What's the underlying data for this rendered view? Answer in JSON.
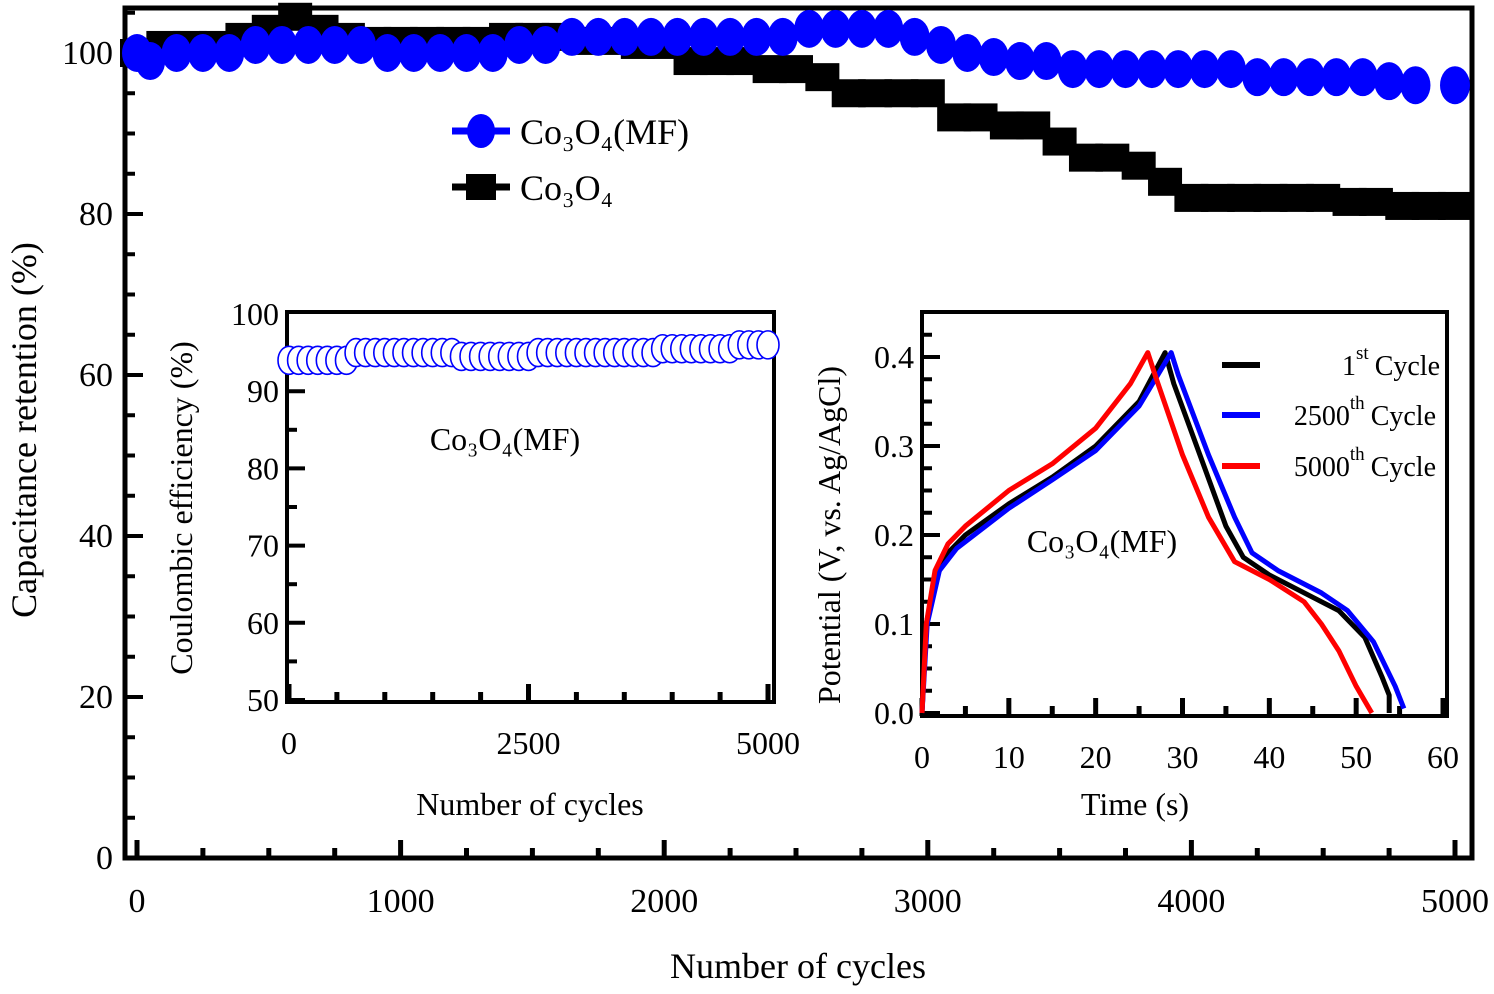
{
  "chart_data": [
    {
      "type": "scatter",
      "xlabel": "Number of cycles",
      "ylabel": "Capacitance retention (%)",
      "xlim": [
        0,
        5000
      ],
      "ylim": [
        0,
        105.6
      ],
      "xticks": [
        "0",
        "1000",
        "2000",
        "3000",
        "4000",
        "5000"
      ],
      "yticks": [
        "0",
        "20",
        "40",
        "60",
        "80",
        "100"
      ],
      "legend_position": "upper-left-center",
      "grid": false,
      "series": [
        {
          "name": "Co₃O₄(MF)",
          "marker": "circle",
          "color": "#0000ff",
          "x": [
            0,
            50,
            150,
            250,
            350,
            450,
            550,
            650,
            750,
            850,
            950,
            1050,
            1150,
            1250,
            1350,
            1450,
            1550,
            1650,
            1750,
            1850,
            1950,
            2050,
            2150,
            2250,
            2350,
            2450,
            2550,
            2650,
            2750,
            2850,
            2950,
            3050,
            3150,
            3250,
            3350,
            3450,
            3550,
            3650,
            3750,
            3850,
            3950,
            4050,
            4150,
            4250,
            4350,
            4450,
            4550,
            4650,
            4750,
            4850,
            5000
          ],
          "y": [
            100,
            99,
            100,
            100,
            100,
            101,
            101,
            101,
            101,
            101,
            100,
            100,
            100,
            100,
            100,
            101,
            101,
            102,
            102,
            102,
            102,
            102,
            102,
            102,
            102,
            102,
            103,
            103,
            103,
            103,
            102,
            101,
            100,
            99.5,
            99,
            99,
            98,
            98,
            98,
            98,
            98,
            98,
            98,
            97,
            97,
            97,
            97,
            97,
            96.5,
            96,
            96
          ]
        },
        {
          "name": "Co₃O₄",
          "marker": "square",
          "color": "#000000",
          "x": [
            0,
            100,
            200,
            300,
            400,
            500,
            600,
            700,
            800,
            900,
            1000,
            1100,
            1200,
            1300,
            1400,
            1500,
            1600,
            1700,
            1800,
            1900,
            2000,
            2100,
            2200,
            2300,
            2400,
            2500,
            2600,
            2700,
            2800,
            2900,
            3000,
            3100,
            3200,
            3300,
            3400,
            3500,
            3600,
            3700,
            3800,
            3900,
            4000,
            4100,
            4200,
            4300,
            4400,
            4500,
            4600,
            4700,
            4800,
            4900,
            5000
          ],
          "y": [
            100,
            101,
            101,
            101,
            102,
            103,
            104.5,
            103,
            102,
            101.5,
            101.5,
            101.5,
            101.5,
            101.5,
            102,
            102,
            102,
            101.5,
            101.5,
            101,
            101,
            99,
            99,
            99,
            98,
            98,
            97,
            95,
            95,
            95,
            95,
            92,
            92,
            91,
            91,
            89,
            87,
            87,
            86,
            84,
            82,
            82,
            82,
            82,
            82,
            82,
            81.5,
            81.5,
            81,
            81,
            81
          ]
        }
      ]
    },
    {
      "type": "scatter",
      "title": "Co₃O₄(MF)",
      "xlabel": "Number of cycles",
      "ylabel": "Coulombic  efficiency (%)",
      "xlim": [
        0,
        5000
      ],
      "ylim": [
        50,
        100
      ],
      "xticks": [
        "0",
        "2500",
        "5000"
      ],
      "yticks": [
        "50",
        "60",
        "70",
        "80",
        "90",
        "100"
      ],
      "series": [
        {
          "marker": "open-circle",
          "color": "#0000ff",
          "x": [
            0,
            100,
            200,
            300,
            400,
            500,
            600,
            700,
            800,
            900,
            1000,
            1100,
            1200,
            1300,
            1400,
            1500,
            1600,
            1700,
            1800,
            1900,
            2000,
            2100,
            2200,
            2300,
            2400,
            2500,
            2600,
            2700,
            2800,
            2900,
            3000,
            3100,
            3200,
            3300,
            3400,
            3500,
            3600,
            3700,
            3800,
            3900,
            4000,
            4100,
            4200,
            4300,
            4400,
            4500,
            4600,
            4700,
            4800,
            4900,
            5000
          ],
          "y": [
            94,
            94,
            94,
            94,
            94,
            94,
            94,
            95,
            95,
            95,
            95,
            95,
            95,
            95,
            95,
            95,
            95,
            95,
            94.5,
            94.5,
            94.5,
            94.5,
            94.5,
            94.5,
            94.5,
            94.5,
            95,
            95,
            95,
            95,
            95,
            95,
            95,
            95,
            95,
            95,
            95,
            95,
            95,
            95.5,
            95.5,
            95.5,
            95.5,
            95.5,
            95.5,
            95.5,
            95.5,
            96,
            96,
            96,
            96
          ]
        }
      ]
    },
    {
      "type": "line",
      "title": "Co₃O₄(MF)",
      "xlabel": "Time (s)",
      "ylabel": "Potential (V, vs. Ag/AgCl)",
      "xlim": [
        0,
        60
      ],
      "ylim": [
        0,
        0.45
      ],
      "xticks": [
        "0",
        "10",
        "20",
        "30",
        "40",
        "50",
        "60"
      ],
      "yticks": [
        "0.0",
        "0.1",
        "0.2",
        "0.3",
        "0.4"
      ],
      "legend_position": "top-right",
      "series": [
        {
          "name": {
            "num": "1",
            "sup": "st",
            "text": "Cycle"
          },
          "color": "#000000",
          "x": [
            0,
            0.5,
            1.5,
            3,
            5,
            10,
            15,
            20,
            25,
            28,
            29,
            32,
            35,
            37,
            40,
            45,
            48,
            51,
            53,
            53.8,
            53.8
          ],
          "y": [
            0,
            0.1,
            0.15,
            0.18,
            0.2,
            0.235,
            0.265,
            0.3,
            0.35,
            0.405,
            0.37,
            0.29,
            0.21,
            0.175,
            0.155,
            0.13,
            0.115,
            0.085,
            0.04,
            0.02,
            0
          ]
        },
        {
          "name": {
            "num": "2500",
            "sup": "th",
            "text": "Cycle"
          },
          "color": "#0000ff",
          "x": [
            0,
            0.6,
            2,
            4,
            10,
            15,
            20,
            25,
            28.7,
            29.5,
            33,
            36,
            38,
            41,
            46,
            49,
            52,
            54.5,
            55.5
          ],
          "y": [
            0,
            0.1,
            0.16,
            0.185,
            0.23,
            0.262,
            0.295,
            0.345,
            0.405,
            0.38,
            0.29,
            0.22,
            0.18,
            0.16,
            0.135,
            0.115,
            0.08,
            0.03,
            0.005
          ]
        },
        {
          "name": {
            "num": "5000",
            "sup": "th",
            "text": "Cycle"
          },
          "color": "#ff0000",
          "x": [
            0,
            0.5,
            1.5,
            3,
            5,
            10,
            15,
            20,
            24,
            26,
            27,
            30,
            33,
            36,
            40,
            44,
            46,
            48,
            50,
            51.8
          ],
          "y": [
            0,
            0.1,
            0.16,
            0.19,
            0.21,
            0.25,
            0.28,
            0.32,
            0.37,
            0.405,
            0.375,
            0.29,
            0.22,
            0.17,
            0.15,
            0.125,
            0.1,
            0.07,
            0.03,
            0
          ]
        }
      ]
    }
  ]
}
